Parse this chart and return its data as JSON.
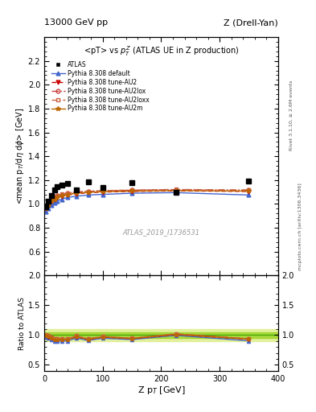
{
  "title_left": "13000 GeV pp",
  "title_right": "Z (Drell-Yan)",
  "plot_title": "<pT> vs $p_T^Z$ (ATLAS UE in Z production)",
  "xlabel": "Z p$_T$ [GeV]",
  "ylabel_main": "<mean p$_T$/d$\\eta$ d$\\phi$> [GeV]",
  "ylabel_ratio": "Ratio to ATLAS",
  "watermark": "ATLAS_2019_I1736531",
  "right_label_top": "Rivet 3.1.10, ≥ 2.6M events",
  "right_label_bottom": "mcplots.cern.ch [arXiv:1306.3436]",
  "xlim": [
    0,
    400
  ],
  "ylim_main": [
    0.4,
    2.4
  ],
  "ylim_ratio": [
    0.4,
    2.0
  ],
  "yticks_main": [
    0.6,
    0.8,
    1.0,
    1.2,
    1.4,
    1.6,
    1.8,
    2.0,
    2.2
  ],
  "yticks_ratio": [
    0.5,
    1.0,
    1.5,
    2.0
  ],
  "xticks": [
    0,
    100,
    200,
    300,
    400
  ],
  "atlas_x": [
    2.5,
    7.5,
    12.5,
    17.5,
    22.5,
    30,
    40,
    55,
    75,
    100,
    150,
    225,
    350
  ],
  "atlas_y": [
    0.975,
    1.02,
    1.07,
    1.12,
    1.145,
    1.155,
    1.17,
    1.12,
    1.185,
    1.14,
    1.18,
    1.1,
    1.19
  ],
  "default_x": [
    2.5,
    7.5,
    12.5,
    17.5,
    22.5,
    30,
    40,
    55,
    75,
    100,
    150,
    225,
    350
  ],
  "default_y": [
    0.938,
    0.965,
    0.99,
    1.01,
    1.025,
    1.04,
    1.055,
    1.065,
    1.075,
    1.08,
    1.09,
    1.095,
    1.075
  ],
  "au2_x": [
    2.5,
    7.5,
    12.5,
    17.5,
    22.5,
    30,
    40,
    55,
    75,
    100,
    150,
    225,
    350
  ],
  "au2_y": [
    0.96,
    0.99,
    1.02,
    1.04,
    1.055,
    1.065,
    1.075,
    1.085,
    1.095,
    1.1,
    1.105,
    1.11,
    1.105
  ],
  "au2lox_x": [
    2.5,
    7.5,
    12.5,
    17.5,
    22.5,
    30,
    40,
    55,
    75,
    100,
    150,
    225,
    350
  ],
  "au2lox_y": [
    0.97,
    1.005,
    1.035,
    1.055,
    1.07,
    1.08,
    1.09,
    1.1,
    1.105,
    1.11,
    1.115,
    1.12,
    1.115
  ],
  "au2loxx_x": [
    2.5,
    7.5,
    12.5,
    17.5,
    22.5,
    30,
    40,
    55,
    75,
    100,
    150,
    225,
    350
  ],
  "au2loxx_y": [
    0.975,
    1.007,
    1.037,
    1.057,
    1.072,
    1.082,
    1.092,
    1.102,
    1.107,
    1.112,
    1.117,
    1.122,
    1.117
  ],
  "au2m_x": [
    2.5,
    7.5,
    12.5,
    17.5,
    22.5,
    30,
    40,
    55,
    75,
    100,
    150,
    225,
    350
  ],
  "au2m_y": [
    0.962,
    0.992,
    1.02,
    1.04,
    1.058,
    1.068,
    1.08,
    1.09,
    1.098,
    1.103,
    1.108,
    1.112,
    1.108
  ],
  "ratio_default_y": [
    0.961,
    0.946,
    0.925,
    0.902,
    0.896,
    0.899,
    0.903,
    0.951,
    0.908,
    0.947,
    0.924,
    0.995,
    0.903
  ],
  "ratio_au2_y": [
    0.985,
    0.971,
    0.953,
    0.929,
    0.921,
    0.922,
    0.923,
    0.97,
    0.924,
    0.965,
    0.938,
    1.009,
    0.929
  ],
  "ratio_au2lox_y": [
    0.995,
    0.985,
    0.968,
    0.942,
    0.935,
    0.935,
    0.935,
    0.982,
    0.934,
    0.974,
    0.945,
    1.018,
    0.937
  ],
  "ratio_au2loxx_y": [
    0.999,
    0.988,
    0.97,
    0.944,
    0.937,
    0.937,
    0.937,
    0.985,
    0.936,
    0.976,
    0.947,
    1.02,
    0.939
  ],
  "ratio_au2m_y": [
    0.987,
    0.972,
    0.953,
    0.929,
    0.922,
    0.922,
    0.924,
    0.973,
    0.927,
    0.969,
    0.94,
    1.011,
    0.931
  ],
  "color_default": "#4466cc",
  "color_au2": "#cc0000",
  "color_au2lox": "#cc4444",
  "color_au2loxx": "#cc6644",
  "color_au2m": "#bb6600",
  "atlas_color": "black",
  "ratio_band_color_outer": "#ddee88",
  "ratio_band_color_inner": "#88cc00",
  "background_color": "#ffffff"
}
